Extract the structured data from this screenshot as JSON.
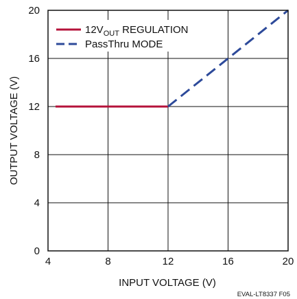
{
  "chart_data": {
    "type": "line",
    "xlabel": "INPUT VOLTAGE (V)",
    "ylabel": "OUTPUT VOLTAGE (V)",
    "xlim": [
      4,
      20
    ],
    "ylim": [
      0,
      20
    ],
    "x_ticks": [
      "4",
      "8",
      "12",
      "16",
      "20"
    ],
    "y_ticks": [
      "0",
      "4",
      "8",
      "12",
      "16",
      "20"
    ],
    "grid": true,
    "legend_position": "top-left",
    "figure_code": "EVAL-LT8337 F05",
    "series": [
      {
        "name": "12VOUT REGULATION",
        "legend_main": "12V",
        "legend_sub": "OUT",
        "legend_tail": " REGULATION",
        "color": "#b5123a",
        "style": "solid",
        "x": [
          4.5,
          12
        ],
        "y": [
          12,
          12
        ]
      },
      {
        "name": "PassThru MODE",
        "color": "#2d4a9a",
        "style": "dashed",
        "x": [
          12,
          20
        ],
        "y": [
          12,
          20
        ]
      }
    ]
  }
}
